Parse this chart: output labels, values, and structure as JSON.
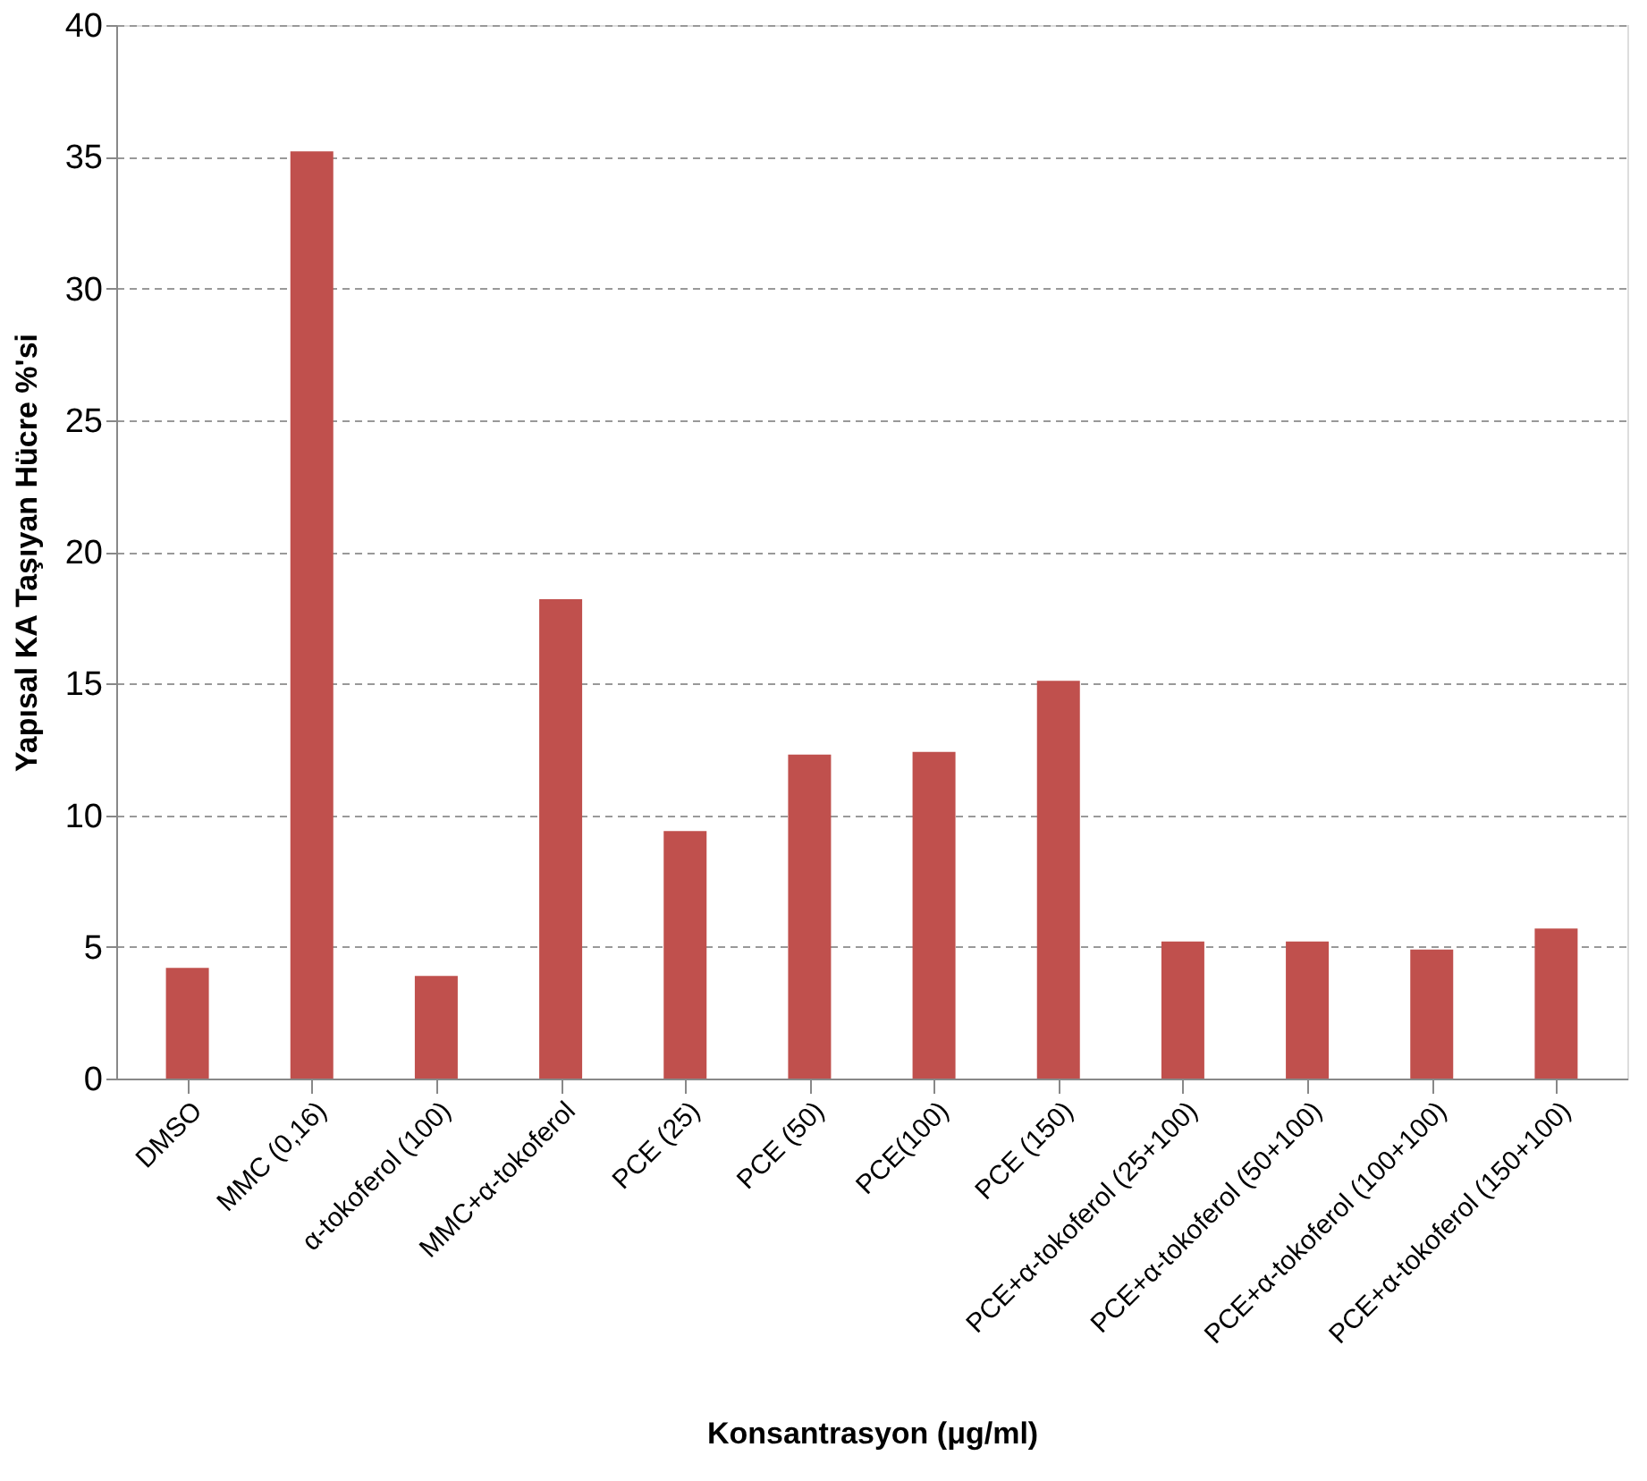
{
  "chart_data": {
    "type": "bar",
    "xlabel": "Konsantrasyon (μg/ml)",
    "ylabel": "Yapısal KA Taşıyan Hücre %'si",
    "categories": [
      "DMSO",
      "MMC (0,16)",
      "α-tokoferol (100)",
      "MMC+α-tokoferol",
      "PCE (25)",
      "PCE (50)",
      "PCE(100)",
      "PCE (150)",
      "PCE+α-tokoferol (25+100)",
      "PCE+α-tokoferol (50+100)",
      "PCE+α-tokoferol (100+100)",
      "PCE+α-tokoferol (150+100)"
    ],
    "values": [
      4.2,
      35.2,
      3.9,
      18.2,
      9.4,
      12.3,
      12.4,
      15.1,
      5.2,
      5.2,
      4.9,
      5.7
    ],
    "color": "#c0504d",
    "ylim": [
      0,
      40
    ],
    "yticks": [
      0,
      5,
      10,
      15,
      20,
      25,
      30,
      35,
      40
    ],
    "grid": "y"
  }
}
